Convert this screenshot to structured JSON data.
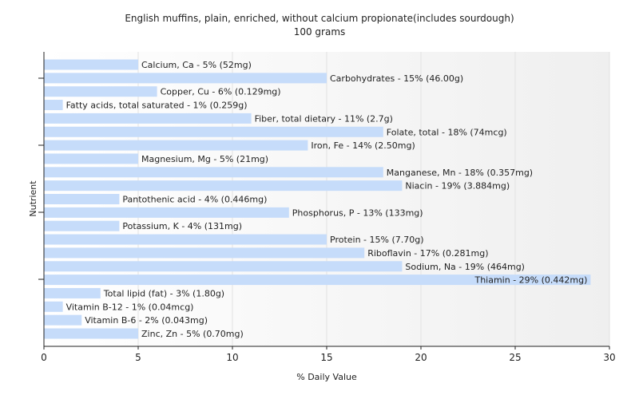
{
  "chart_data": {
    "type": "bar",
    "orientation": "horizontal",
    "title": "English muffins, plain, enriched, without calcium propionate(includes sourdough)",
    "subtitle": "100 grams",
    "xlabel": "% Daily Value",
    "ylabel": "Nutrient",
    "xlim": [
      0,
      30
    ],
    "xticks": [
      0,
      5,
      10,
      15,
      20,
      25,
      30
    ],
    "grid": true,
    "bar_color": "#c6dcfa",
    "categories": [
      "Calcium, Ca",
      "Carbohydrates",
      "Copper, Cu",
      "Fatty acids, total saturated",
      "Fiber, total dietary",
      "Folate, total",
      "Iron, Fe",
      "Magnesium, Mg",
      "Manganese, Mn",
      "Niacin",
      "Pantothenic acid",
      "Phosphorus, P",
      "Potassium, K",
      "Protein",
      "Riboflavin",
      "Sodium, Na",
      "Thiamin",
      "Total lipid (fat)",
      "Vitamin B-12",
      "Vitamin B-6",
      "Zinc, Zn"
    ],
    "values": [
      5,
      15,
      6,
      1,
      11,
      18,
      14,
      5,
      18,
      19,
      4,
      13,
      4,
      15,
      17,
      19,
      29,
      3,
      1,
      2,
      5
    ],
    "labels": [
      "Calcium, Ca - 5% (52mg)",
      "Carbohydrates - 15% (46.00g)",
      "Copper, Cu - 6% (0.129mg)",
      "Fatty acids, total saturated - 1% (0.259g)",
      "Fiber, total dietary - 11% (2.7g)",
      "Folate, total - 18% (74mcg)",
      "Iron, Fe - 14% (2.50mg)",
      "Magnesium, Mg - 5% (21mg)",
      "Manganese, Mn - 18% (0.357mg)",
      "Niacin - 19% (3.884mg)",
      "Pantothenic acid - 4% (0.446mg)",
      "Phosphorus, P - 13% (133mg)",
      "Potassium, K - 4% (131mg)",
      "Protein - 15% (7.70g)",
      "Riboflavin - 17% (0.281mg)",
      "Sodium, Na - 19% (464mg)",
      "Thiamin - 29% (0.442mg)",
      "Total lipid (fat) - 3% (1.80g)",
      "Vitamin B-12 - 1% (0.04mcg)",
      "Vitamin B-6 - 2% (0.043mg)",
      "Zinc, Zn - 5% (0.70mg)"
    ]
  }
}
